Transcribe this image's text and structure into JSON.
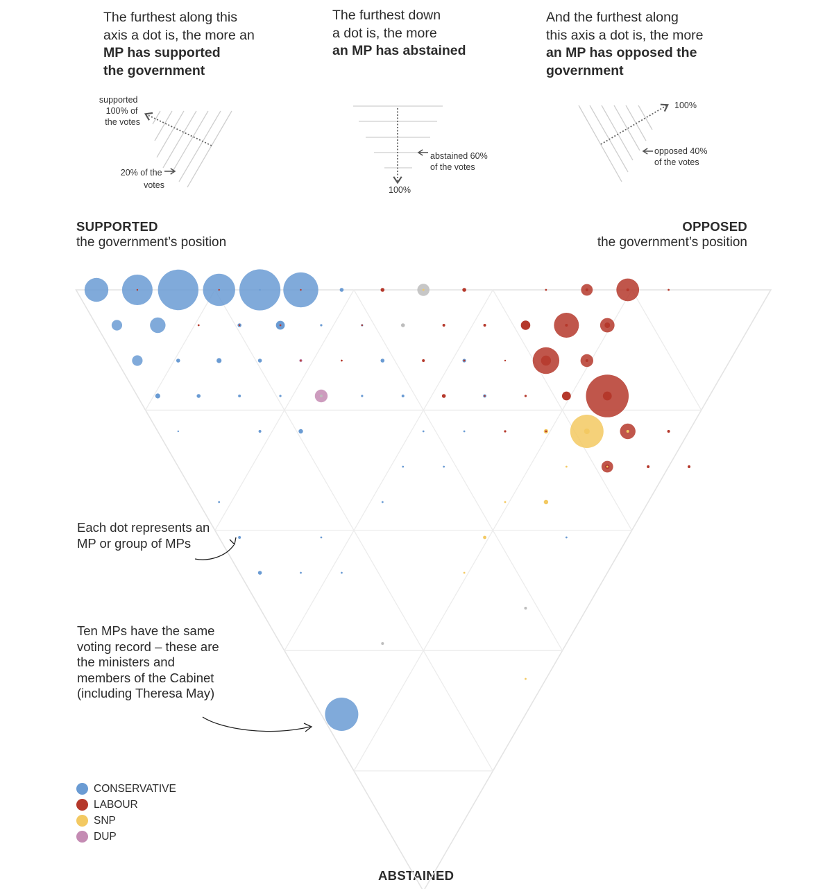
{
  "explainers": {
    "supported": {
      "lines": [
        "The furthest along this",
        "axis a dot is, the more an"
      ],
      "bold": [
        "MP has supported",
        "the government"
      ],
      "diagram": {
        "top_label": [
          "supported",
          "100% of",
          "the votes"
        ],
        "bottom_label": [
          "20% of the",
          "votes"
        ]
      }
    },
    "abstained": {
      "lines": [
        "The furthest down",
        "a dot is, the more"
      ],
      "bold": [
        "an MP has abstained"
      ],
      "diagram": {
        "side_label": [
          "abstained 60%",
          "of the votes"
        ],
        "bottom_label": "100%"
      }
    },
    "opposed": {
      "lines": [
        "And the furthest along",
        "this axis a dot is, the more"
      ],
      "bold": [
        "an MP has opposed the",
        "government"
      ],
      "diagram": {
        "top_label": "100%",
        "side_label": [
          "opposed 40%",
          "of the votes"
        ]
      }
    }
  },
  "corners": {
    "left_head": "SUPPORTED",
    "left_sub": "the government’s position",
    "right_head": "OPPOSED",
    "right_sub": "the government’s position",
    "bottom_head": "ABSTAINED"
  },
  "annotations": {
    "each_dot": [
      "Each dot represents an",
      "MP or group of MPs"
    ],
    "ten_mps": [
      "Ten MPs have the same",
      "voting record – these are",
      "the ministers and",
      "members of the Cabinet",
      "(including Theresa May)"
    ]
  },
  "legend": [
    {
      "label": "CONSERVATIVE",
      "color": "#6a9bd3"
    },
    {
      "label": "LABOUR",
      "color": "#b5382b"
    },
    {
      "label": "SNP",
      "color": "#f3c962"
    },
    {
      "label": "DUP",
      "color": "#c48bb3"
    }
  ],
  "chart_data": {
    "type": "scatter",
    "subtype": "ternary",
    "axes": [
      "supported",
      "opposed",
      "abstained"
    ],
    "units": "share of votes (grid steps of 10%)",
    "party_colors": {
      "con": "#6a9bd3",
      "lab": "#b5382b",
      "snp": "#f3c962",
      "dup": "#c48bb3",
      "other": "#bdbdbd"
    },
    "points": [
      {
        "i": 0,
        "j": 0,
        "party": "con",
        "size": 3.8
      },
      {
        "i": 1,
        "j": 0,
        "party": "con",
        "size": 5
      },
      {
        "i": 2,
        "j": 0,
        "party": "con",
        "size": 6.8
      },
      {
        "i": 3,
        "j": 0,
        "party": "con",
        "size": 5.3
      },
      {
        "i": 4,
        "j": 0,
        "party": "con",
        "size": 6.9
      },
      {
        "i": 5,
        "j": 0,
        "party": "con",
        "size": 5.8
      },
      {
        "i": 6,
        "j": 0,
        "party": "con",
        "size": 0.7
      },
      {
        "i": 1,
        "j": 0,
        "party": "lab",
        "size": 0.3
      },
      {
        "i": 3,
        "j": 0,
        "party": "lab",
        "size": 0.3
      },
      {
        "i": 4,
        "j": 0,
        "party": "con",
        "size": 0.3
      },
      {
        "i": 5,
        "j": 0,
        "party": "lab",
        "size": 0.3
      },
      {
        "i": 7,
        "j": 0,
        "party": "lab",
        "size": 0.7
      },
      {
        "i": 8,
        "j": 0,
        "party": "other",
        "size": 1.7
      },
      {
        "i": 8,
        "j": 0,
        "party": "snp",
        "size": 0.35
      },
      {
        "i": 9,
        "j": 0,
        "party": "lab",
        "size": 0.7
      },
      {
        "i": 11,
        "j": 0,
        "party": "lab",
        "size": 0.35
      },
      {
        "i": 12,
        "j": 0,
        "party": "lab",
        "size": 1.6
      },
      {
        "i": 12,
        "j": 0,
        "party": "lab",
        "size": 0.5
      },
      {
        "i": 13,
        "j": 0,
        "party": "lab",
        "size": 3.6
      },
      {
        "i": 13,
        "j": 0,
        "party": "lab",
        "size": 0.5
      },
      {
        "i": 14,
        "j": 0,
        "party": "lab",
        "size": 0.35
      },
      {
        "i": 0,
        "j": 1,
        "party": "con",
        "size": 1.4
      },
      {
        "i": 1,
        "j": 1,
        "party": "con",
        "size": 2.3
      },
      {
        "i": 2,
        "j": 1,
        "party": "lab",
        "size": 0.35
      },
      {
        "i": 3,
        "j": 1,
        "party": "con",
        "size": 0.7
      },
      {
        "i": 3,
        "j": 1,
        "party": "lab",
        "size": 0.3
      },
      {
        "i": 4,
        "j": 1,
        "party": "con",
        "size": 1.1
      },
      {
        "i": 4,
        "j": 1,
        "party": "lab",
        "size": 0.35
      },
      {
        "i": 5,
        "j": 1,
        "party": "con",
        "size": 0.4
      },
      {
        "i": 6,
        "j": 1,
        "party": "con",
        "size": 0.4
      },
      {
        "i": 6,
        "j": 1,
        "party": "lab",
        "size": 0.3
      },
      {
        "i": 7,
        "j": 1,
        "party": "other",
        "size": 0.7
      },
      {
        "i": 8,
        "j": 1,
        "party": "lab",
        "size": 0.5
      },
      {
        "i": 9,
        "j": 1,
        "party": "lab",
        "size": 0.5
      },
      {
        "i": 10,
        "j": 1,
        "party": "lab",
        "size": 1.2
      },
      {
        "i": 10,
        "j": 1,
        "party": "lab",
        "size": 0.35
      },
      {
        "i": 11,
        "j": 1,
        "party": "lab",
        "size": 4.0
      },
      {
        "i": 11,
        "j": 1,
        "party": "lab",
        "size": 0.5
      },
      {
        "i": 12,
        "j": 1,
        "party": "lab",
        "size": 2.1
      },
      {
        "i": 12,
        "j": 1,
        "party": "lab",
        "size": 1.0
      },
      {
        "i": 0,
        "j": 2,
        "party": "con",
        "size": 1.4
      },
      {
        "i": 1,
        "j": 2,
        "party": "con",
        "size": 0.7
      },
      {
        "i": 2,
        "j": 2,
        "party": "con",
        "size": 0.9
      },
      {
        "i": 3,
        "j": 2,
        "party": "con",
        "size": 0.7
      },
      {
        "i": 4,
        "j": 2,
        "party": "dup",
        "size": 0.55
      },
      {
        "i": 4,
        "j": 2,
        "party": "lab",
        "size": 0.3
      },
      {
        "i": 5,
        "j": 2,
        "party": "lab",
        "size": 0.35
      },
      {
        "i": 6,
        "j": 2,
        "party": "con",
        "size": 0.7
      },
      {
        "i": 7,
        "j": 2,
        "party": "lab",
        "size": 0.5
      },
      {
        "i": 8,
        "j": 2,
        "party": "con",
        "size": 0.65
      },
      {
        "i": 8,
        "j": 2,
        "party": "lab",
        "size": 0.35
      },
      {
        "i": 9,
        "j": 2,
        "party": "lab",
        "size": 0.3
      },
      {
        "i": 10,
        "j": 2,
        "party": "lab",
        "size": 4.3
      },
      {
        "i": 10,
        "j": 2,
        "party": "lab",
        "size": 1.3
      },
      {
        "i": 11,
        "j": 2,
        "party": "lab",
        "size": 1.8
      },
      {
        "i": 11,
        "j": 2,
        "party": "lab",
        "size": 0.5
      },
      {
        "i": 0,
        "j": 3,
        "party": "con",
        "size": 0.9
      },
      {
        "i": 1,
        "j": 3,
        "party": "con",
        "size": 0.7
      },
      {
        "i": 2,
        "j": 3,
        "party": "con",
        "size": 0.5
      },
      {
        "i": 3,
        "j": 3,
        "party": "con",
        "size": 0.4
      },
      {
        "i": 4,
        "j": 3,
        "party": "dup",
        "size": 1.8
      },
      {
        "i": 4,
        "j": 3,
        "party": "other",
        "size": 0.5
      },
      {
        "i": 5,
        "j": 3,
        "party": "con",
        "size": 0.4
      },
      {
        "i": 6,
        "j": 3,
        "party": "con",
        "size": 0.5
      },
      {
        "i": 7,
        "j": 3,
        "party": "lab",
        "size": 0.7
      },
      {
        "i": 8,
        "j": 3,
        "party": "con",
        "size": 0.6
      },
      {
        "i": 8,
        "j": 3,
        "party": "lab",
        "size": 0.3
      },
      {
        "i": 9,
        "j": 3,
        "party": "lab",
        "size": 0.4
      },
      {
        "i": 10,
        "j": 3,
        "party": "lab",
        "size": 1.1
      },
      {
        "i": 11,
        "j": 3,
        "party": "lab",
        "size": 7.2
      },
      {
        "i": 11,
        "j": 3,
        "party": "lab",
        "size": 1.1
      },
      {
        "i": 0,
        "j": 4,
        "party": "con",
        "size": 0.3
      },
      {
        "i": 2,
        "j": 4,
        "party": "con",
        "size": 0.5
      },
      {
        "i": 3,
        "j": 4,
        "party": "con",
        "size": 0.8
      },
      {
        "i": 6,
        "j": 4,
        "party": "con",
        "size": 0.35
      },
      {
        "i": 7,
        "j": 4,
        "party": "con",
        "size": 0.35
      },
      {
        "i": 8,
        "j": 4,
        "party": "lab",
        "size": 0.4
      },
      {
        "i": 9,
        "j": 4,
        "party": "snp",
        "size": 0.8
      },
      {
        "i": 9,
        "j": 4,
        "party": "lab",
        "size": 0.35
      },
      {
        "i": 10,
        "j": 4,
        "party": "snp",
        "size": 5.5
      },
      {
        "i": 10,
        "j": 4,
        "party": "snp",
        "size": 1.0
      },
      {
        "i": 11,
        "j": 4,
        "party": "lab",
        "size": 2.3
      },
      {
        "i": 11,
        "j": 4,
        "party": "snp",
        "size": 0.5
      },
      {
        "i": 12,
        "j": 4,
        "party": "lab",
        "size": 0.5
      },
      {
        "i": 5,
        "j": 5,
        "party": "con",
        "size": 0.35
      },
      {
        "i": 6,
        "j": 5,
        "party": "con",
        "size": 0.35
      },
      {
        "i": 9,
        "j": 5,
        "party": "snp",
        "size": 0.35
      },
      {
        "i": 10,
        "j": 5,
        "party": "lab",
        "size": 1.6
      },
      {
        "i": 10,
        "j": 5,
        "party": "lab",
        "size": 0.8
      },
      {
        "i": 10,
        "j": 5,
        "party": "snp",
        "size": 0.35
      },
      {
        "i": 11,
        "j": 5,
        "party": "lab",
        "size": 0.5
      },
      {
        "i": 12,
        "j": 5,
        "party": "lab",
        "size": 0.5
      },
      {
        "i": 0,
        "j": 6,
        "party": "con",
        "size": 0.35
      },
      {
        "i": 4,
        "j": 6,
        "party": "con",
        "size": 0.35
      },
      {
        "i": 7,
        "j": 6,
        "party": "snp",
        "size": 0.35
      },
      {
        "i": 8,
        "j": 6,
        "party": "snp",
        "size": 0.8
      },
      {
        "i": 0,
        "j": 7,
        "party": "con",
        "size": 0.5
      },
      {
        "i": 2,
        "j": 7,
        "party": "con",
        "size": 0.35
      },
      {
        "i": 6,
        "j": 7,
        "party": "snp",
        "size": 0.6
      },
      {
        "i": 8,
        "j": 7,
        "party": "con",
        "size": 0.35
      },
      {
        "i": 0,
        "j": 8,
        "party": "con",
        "size": 0.7
      },
      {
        "i": 1,
        "j": 8,
        "party": "con",
        "size": 0.35
      },
      {
        "i": 2,
        "j": 8,
        "party": "con",
        "size": 0.35
      },
      {
        "i": 5,
        "j": 8,
        "party": "snp",
        "size": 0.35
      },
      {
        "i": 6,
        "j": 9,
        "party": "other",
        "size": 0.5
      },
      {
        "i": 2,
        "j": 10,
        "party": "other",
        "size": 0.5
      },
      {
        "i": 5,
        "j": 11,
        "party": "snp",
        "size": 0.35
      },
      {
        "i": 0,
        "j": 12,
        "party": "con",
        "size": 5.5
      }
    ]
  }
}
